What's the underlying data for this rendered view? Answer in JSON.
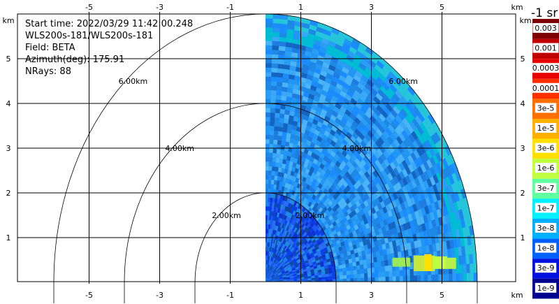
{
  "info": {
    "start_time": "Start time: 2022/03/29 11:42:00.248",
    "instrument": "WLS200s-181/WLS200s-181",
    "field": "Field: BETA",
    "azimuth": "Azimuth(deg): 175.91",
    "nrays": "NRays: 88"
  },
  "colorbar": {
    "title": "-1 sr",
    "labels": [
      "0.003",
      "0.001",
      "0.0003",
      "0.0001",
      "3e-5",
      "1e-5",
      "3e-6",
      "1e-6",
      "3e-7",
      "1e-7",
      "3e-8",
      "1e-8",
      "3e-9",
      "1e-9"
    ],
    "colors": [
      "#7f0000",
      "#c00000",
      "#e60000",
      "#ff3000",
      "#ff7000",
      "#ffb000",
      "#ffe000",
      "#c0ff40",
      "#60ffa0",
      "#00f0ff",
      "#00b0ff",
      "#0060ff",
      "#0010e0",
      "#000090"
    ]
  },
  "chart_data": {
    "type": "heatmap",
    "subtype": "radar PPI sector",
    "x_unit": "km",
    "y_unit": "km",
    "xlim": [
      -6,
      6.2
    ],
    "ylim": [
      0,
      6
    ],
    "x_ticks": [
      -5,
      -3,
      -1,
      1,
      3,
      5
    ],
    "y_ticks": [
      1,
      2,
      3,
      4,
      5
    ],
    "grid": true,
    "range_rings_km": [
      2,
      4,
      6
    ],
    "range_ring_labels": [
      "2.00km",
      "4.00km",
      "6.00km"
    ],
    "data_sector": {
      "azimuth_start_deg": 0,
      "azimuth_end_deg": 90,
      "max_range_km": 6
    },
    "dominant_value": "about 3e-8 (blue)",
    "features": [
      {
        "description": "near-range noise",
        "value_range": [
          "1e-8",
          "3e-9"
        ]
      },
      {
        "description": "band near x=4.2–5.0 km, y≈0.4 km",
        "value_range": [
          "1e-5",
          "3e-7"
        ]
      }
    ]
  }
}
